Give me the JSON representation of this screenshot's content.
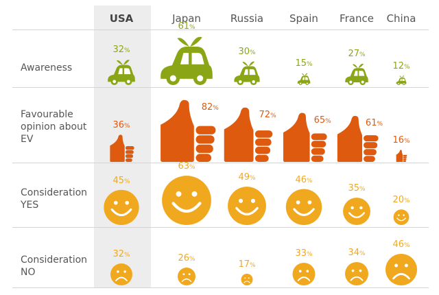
{
  "colors": {
    "awareness": "#8aa617",
    "favourable": "#dd5a0e",
    "consideration_yes": "#f0a81e",
    "consideration_no": "#f0a81e",
    "usa_band": "#ededed"
  },
  "icons": {
    "awareness": "car-icon",
    "favourable": "thumbs-up-icon",
    "consideration_yes": "smiley-face-icon",
    "consideration_no": "sad-face-icon"
  },
  "chart_data": {
    "type": "table",
    "percent_suffix": "%",
    "categories": [
      "USA",
      "Japan",
      "Russia",
      "Spain",
      "France",
      "China"
    ],
    "highlighted_category": "USA",
    "series": [
      {
        "name": "Awareness",
        "values": [
          32,
          61,
          30,
          15,
          27,
          12
        ]
      },
      {
        "name": "Favourable\nopinion about\nEV",
        "values": [
          36,
          82,
          72,
          65,
          61,
          16
        ]
      },
      {
        "name": "Consideration\nYES",
        "values": [
          45,
          63,
          49,
          46,
          35,
          20
        ]
      },
      {
        "name": "Consideration\nNO",
        "values": [
          32,
          26,
          17,
          33,
          34,
          46
        ]
      }
    ]
  }
}
